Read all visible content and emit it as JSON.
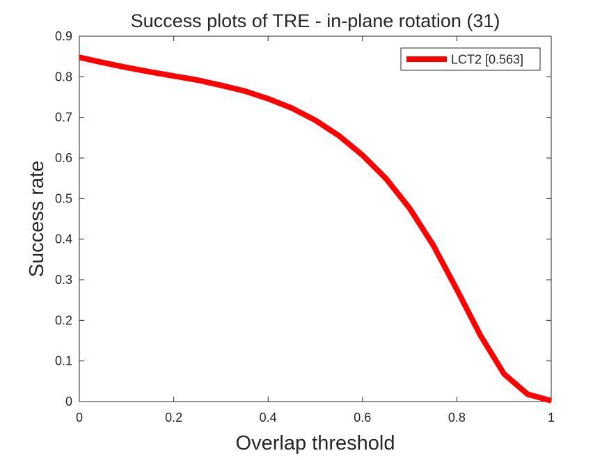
{
  "chart_data": {
    "type": "line",
    "title": "Success plots of TRE - in-plane rotation (31)",
    "xlabel": "Overlap threshold",
    "ylabel": "Success rate",
    "xlim": [
      0,
      1
    ],
    "ylim": [
      0,
      0.9
    ],
    "xticks": [
      "0",
      "0.2",
      "0.4",
      "0.6",
      "0.8",
      "1"
    ],
    "yticks": [
      "0",
      "0.1",
      "0.2",
      "0.3",
      "0.4",
      "0.5",
      "0.6",
      "0.7",
      "0.8",
      "0.9"
    ],
    "grid": false,
    "legend_position": "top-right",
    "series": [
      {
        "name": "LCT2 [0.563]",
        "color": "#ff0000",
        "x": [
          0,
          0.05,
          0.1,
          0.15,
          0.2,
          0.25,
          0.3,
          0.35,
          0.4,
          0.45,
          0.5,
          0.55,
          0.6,
          0.65,
          0.7,
          0.75,
          0.8,
          0.85,
          0.9,
          0.95,
          1.0
        ],
        "y": [
          0.848,
          0.835,
          0.823,
          0.812,
          0.802,
          0.792,
          0.779,
          0.765,
          0.746,
          0.723,
          0.693,
          0.655,
          0.607,
          0.549,
          0.476,
          0.385,
          0.276,
          0.163,
          0.068,
          0.018,
          0.002
        ]
      }
    ]
  }
}
